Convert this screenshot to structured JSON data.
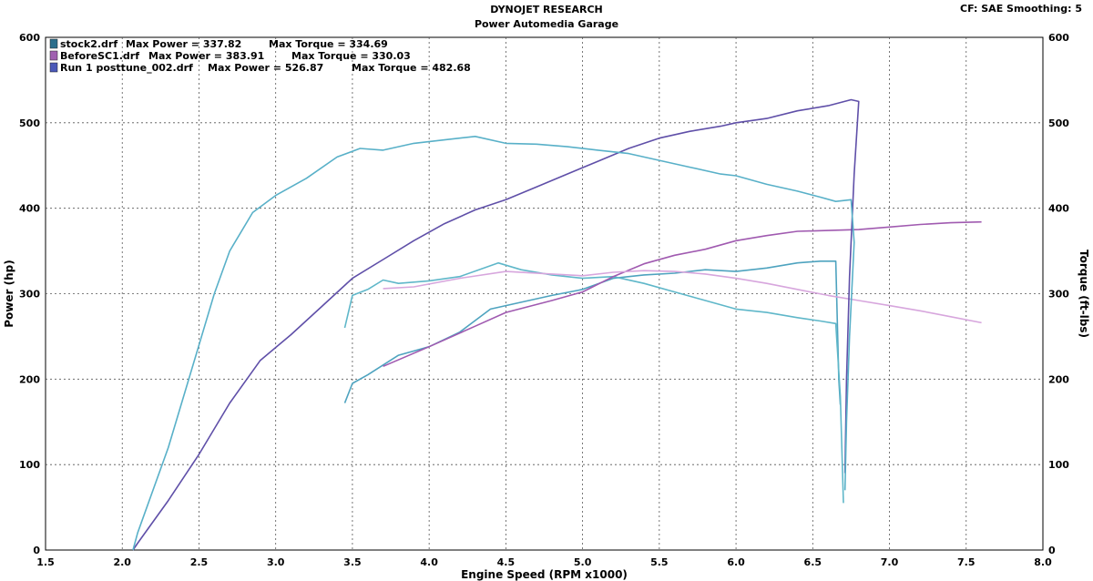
{
  "header": {
    "title": "DYNOJET RESEARCH",
    "subtitle": "Power Automedia Garage",
    "corner": "CF: SAE  Smoothing: 5"
  },
  "chart_data": {
    "type": "line",
    "title": "DYNOJET RESEARCH",
    "subtitle": "Power Automedia Garage",
    "xlabel": "Engine Speed (RPM x1000)",
    "ylabel_left": "Power (hp)",
    "ylabel_right": "Torque (ft-lbs)",
    "xlim": [
      1.5,
      8.0
    ],
    "ylim": [
      0,
      600
    ],
    "x_ticks": [
      "1.5",
      "2.0",
      "2.5",
      "3.0",
      "3.5",
      "4.0",
      "4.5",
      "5.0",
      "5.5",
      "6.0",
      "6.5",
      "7.0",
      "7.5",
      "8.0"
    ],
    "y_ticks_left": [
      "0",
      "100",
      "200",
      "300",
      "400",
      "500",
      "600"
    ],
    "y_ticks_right": [
      "0",
      "100",
      "200",
      "300",
      "400",
      "500",
      "600"
    ],
    "grid": true,
    "legend": [
      {
        "file": "stock2.drf",
        "max_power": "Max Power = 337.82",
        "max_torque": "Max Torque = 334.69",
        "color": "#2a6e8c"
      },
      {
        "file": "BeforeSC1.drf",
        "max_power": "Max Power = 383.91",
        "max_torque": "Max Torque = 330.03",
        "color": "#a060b0"
      },
      {
        "file": "Run 1 posttune_002.drf",
        "max_power": "Max Power = 526.87",
        "max_torque": "Max Torque = 482.68",
        "color": "#4a58b8"
      }
    ],
    "legend_placement": "top-left",
    "series": [
      {
        "run": "stock2.drf",
        "quantity": "power",
        "color": "#4ea3bf",
        "points": [
          [
            3.45,
            172
          ],
          [
            3.5,
            195
          ],
          [
            3.6,
            205
          ],
          [
            3.8,
            228
          ],
          [
            4.0,
            238
          ],
          [
            4.2,
            255
          ],
          [
            4.4,
            282
          ],
          [
            4.6,
            290
          ],
          [
            4.8,
            298
          ],
          [
            5.0,
            305
          ],
          [
            5.2,
            318
          ],
          [
            5.4,
            322
          ],
          [
            5.6,
            324
          ],
          [
            5.8,
            328
          ],
          [
            6.0,
            326
          ],
          [
            6.2,
            330
          ],
          [
            6.4,
            336
          ],
          [
            6.55,
            338
          ],
          [
            6.65,
            338
          ],
          [
            6.67,
            200
          ],
          [
            6.68,
            170
          ]
        ]
      },
      {
        "run": "stock2.drf",
        "quantity": "torque",
        "color": "#5fb7c9",
        "points": [
          [
            3.45,
            260
          ],
          [
            3.5,
            298
          ],
          [
            3.6,
            305
          ],
          [
            3.7,
            316
          ],
          [
            3.8,
            312
          ],
          [
            4.0,
            315
          ],
          [
            4.2,
            320
          ],
          [
            4.45,
            336
          ],
          [
            4.6,
            328
          ],
          [
            4.8,
            322
          ],
          [
            5.0,
            318
          ],
          [
            5.2,
            320
          ],
          [
            5.4,
            312
          ],
          [
            5.6,
            302
          ],
          [
            5.8,
            292
          ],
          [
            6.0,
            282
          ],
          [
            6.2,
            278
          ],
          [
            6.4,
            272
          ],
          [
            6.55,
            268
          ],
          [
            6.65,
            265
          ],
          [
            6.68,
            180
          ],
          [
            6.7,
            55
          ]
        ]
      },
      {
        "run": "BeforeSC1.drf",
        "quantity": "power",
        "color": "#a05ab0",
        "points": [
          [
            3.7,
            215
          ],
          [
            4.0,
            238
          ],
          [
            4.3,
            262
          ],
          [
            4.5,
            278
          ],
          [
            4.8,
            292
          ],
          [
            5.0,
            302
          ],
          [
            5.2,
            320
          ],
          [
            5.4,
            335
          ],
          [
            5.6,
            345
          ],
          [
            5.8,
            352
          ],
          [
            6.0,
            362
          ],
          [
            6.2,
            368
          ],
          [
            6.4,
            373
          ],
          [
            6.6,
            374
          ],
          [
            6.8,
            375
          ],
          [
            7.0,
            378
          ],
          [
            7.2,
            381
          ],
          [
            7.4,
            383
          ],
          [
            7.6,
            384
          ]
        ]
      },
      {
        "run": "BeforeSC1.drf",
        "quantity": "torque",
        "color": "#d7a6dd",
        "points": [
          [
            3.7,
            306
          ],
          [
            3.9,
            308
          ],
          [
            4.2,
            318
          ],
          [
            4.5,
            326
          ],
          [
            4.8,
            323
          ],
          [
            5.0,
            321
          ],
          [
            5.2,
            325
          ],
          [
            5.4,
            327
          ],
          [
            5.6,
            326
          ],
          [
            5.8,
            323
          ],
          [
            6.0,
            318
          ],
          [
            6.2,
            312
          ],
          [
            6.4,
            305
          ],
          [
            6.6,
            298
          ],
          [
            6.8,
            292
          ],
          [
            7.0,
            286
          ],
          [
            7.2,
            280
          ],
          [
            7.4,
            273
          ],
          [
            7.6,
            266
          ]
        ]
      },
      {
        "run": "Run 1 posttune_002.drf",
        "quantity": "power",
        "color": "#5f4fa8",
        "points": [
          [
            2.07,
            0
          ],
          [
            2.1,
            8
          ],
          [
            2.3,
            58
          ],
          [
            2.5,
            112
          ],
          [
            2.7,
            172
          ],
          [
            2.9,
            222
          ],
          [
            3.1,
            252
          ],
          [
            3.3,
            285
          ],
          [
            3.5,
            318
          ],
          [
            3.7,
            340
          ],
          [
            3.9,
            362
          ],
          [
            4.1,
            382
          ],
          [
            4.3,
            398
          ],
          [
            4.5,
            410
          ],
          [
            4.7,
            425
          ],
          [
            4.9,
            440
          ],
          [
            5.1,
            455
          ],
          [
            5.3,
            470
          ],
          [
            5.5,
            482
          ],
          [
            5.7,
            490
          ],
          [
            5.9,
            496
          ],
          [
            6.0,
            500
          ],
          [
            6.2,
            505
          ],
          [
            6.4,
            514
          ],
          [
            6.6,
            520
          ],
          [
            6.75,
            527
          ],
          [
            6.8,
            525
          ],
          [
            6.77,
            440
          ],
          [
            6.74,
            320
          ],
          [
            6.72,
            200
          ],
          [
            6.71,
            90
          ]
        ]
      },
      {
        "run": "Run 1 posttune_002.drf",
        "quantity": "torque",
        "color": "#58b0c8",
        "points": [
          [
            2.07,
            0
          ],
          [
            2.1,
            20
          ],
          [
            2.3,
            120
          ],
          [
            2.5,
            240
          ],
          [
            2.6,
            300
          ],
          [
            2.7,
            350
          ],
          [
            2.85,
            395
          ],
          [
            3.0,
            415
          ],
          [
            3.2,
            435
          ],
          [
            3.4,
            460
          ],
          [
            3.55,
            470
          ],
          [
            3.7,
            468
          ],
          [
            3.9,
            476
          ],
          [
            4.1,
            480
          ],
          [
            4.3,
            484
          ],
          [
            4.5,
            476
          ],
          [
            4.7,
            475
          ],
          [
            4.9,
            472
          ],
          [
            5.1,
            468
          ],
          [
            5.3,
            464
          ],
          [
            5.5,
            456
          ],
          [
            5.7,
            448
          ],
          [
            5.9,
            440
          ],
          [
            6.0,
            438
          ],
          [
            6.2,
            428
          ],
          [
            6.4,
            420
          ],
          [
            6.55,
            413
          ],
          [
            6.65,
            408
          ],
          [
            6.75,
            410
          ],
          [
            6.77,
            360
          ],
          [
            6.74,
            250
          ],
          [
            6.72,
            150
          ],
          [
            6.71,
            70
          ]
        ]
      }
    ]
  }
}
